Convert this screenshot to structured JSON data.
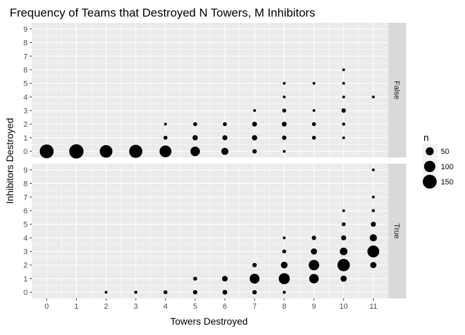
{
  "chart_data": {
    "type": "scatter",
    "title": "Frequency of Teams that Destroyed N Towers, M Inhibitors",
    "xlabel": "Towers Destroyed",
    "ylabel": "Inhibitors Destroyed",
    "x_ticks": [
      0,
      1,
      2,
      3,
      4,
      5,
      6,
      7,
      8,
      9,
      10,
      11
    ],
    "y_ticks": [
      0,
      1,
      2,
      3,
      4,
      5,
      6,
      7,
      8,
      9
    ],
    "xlim": [
      -0.5,
      11.5
    ],
    "ylim": [
      -0.45,
      9.45
    ],
    "grid": true,
    "legend": {
      "title": "n",
      "placement": "right",
      "entries": [
        50,
        100,
        150
      ]
    },
    "facets": [
      {
        "strip_label": "False",
        "points": [
          {
            "x": 0,
            "y": 0,
            "n": 150
          },
          {
            "x": 1,
            "y": 0,
            "n": 160
          },
          {
            "x": 2,
            "y": 0,
            "n": 125
          },
          {
            "x": 3,
            "y": 0,
            "n": 135
          },
          {
            "x": 4,
            "y": 0,
            "n": 110
          },
          {
            "x": 5,
            "y": 0,
            "n": 70
          },
          {
            "x": 6,
            "y": 0,
            "n": 40
          },
          {
            "x": 7,
            "y": 0,
            "n": 15
          },
          {
            "x": 8,
            "y": 0,
            "n": 4
          },
          {
            "x": 4,
            "y": 1,
            "n": 12
          },
          {
            "x": 5,
            "y": 1,
            "n": 22
          },
          {
            "x": 6,
            "y": 1,
            "n": 20
          },
          {
            "x": 7,
            "y": 1,
            "n": 22
          },
          {
            "x": 8,
            "y": 1,
            "n": 15
          },
          {
            "x": 9,
            "y": 1,
            "n": 12
          },
          {
            "x": 10,
            "y": 1,
            "n": 4
          },
          {
            "x": 4,
            "y": 2,
            "n": 6
          },
          {
            "x": 5,
            "y": 2,
            "n": 12
          },
          {
            "x": 6,
            "y": 2,
            "n": 12
          },
          {
            "x": 7,
            "y": 2,
            "n": 18
          },
          {
            "x": 8,
            "y": 2,
            "n": 18
          },
          {
            "x": 9,
            "y": 2,
            "n": 12
          },
          {
            "x": 10,
            "y": 2,
            "n": 8
          },
          {
            "x": 7,
            "y": 3,
            "n": 5
          },
          {
            "x": 8,
            "y": 3,
            "n": 12
          },
          {
            "x": 9,
            "y": 3,
            "n": 5
          },
          {
            "x": 10,
            "y": 3,
            "n": 15
          },
          {
            "x": 8,
            "y": 4,
            "n": 5
          },
          {
            "x": 10,
            "y": 4,
            "n": 5
          },
          {
            "x": 11,
            "y": 4,
            "n": 5
          },
          {
            "x": 8,
            "y": 5,
            "n": 4
          },
          {
            "x": 9,
            "y": 5,
            "n": 4
          },
          {
            "x": 10,
            "y": 5,
            "n": 5
          },
          {
            "x": 10,
            "y": 6,
            "n": 4
          }
        ]
      },
      {
        "strip_label": "True",
        "points": [
          {
            "x": 2,
            "y": 0,
            "n": 5
          },
          {
            "x": 3,
            "y": 0,
            "n": 8
          },
          {
            "x": 4,
            "y": 0,
            "n": 12
          },
          {
            "x": 5,
            "y": 0,
            "n": 15
          },
          {
            "x": 6,
            "y": 0,
            "n": 18
          },
          {
            "x": 7,
            "y": 0,
            "n": 15
          },
          {
            "x": 8,
            "y": 0,
            "n": 8
          },
          {
            "x": 5,
            "y": 1,
            "n": 12
          },
          {
            "x": 6,
            "y": 1,
            "n": 25
          },
          {
            "x": 7,
            "y": 1,
            "n": 75
          },
          {
            "x": 8,
            "y": 1,
            "n": 95
          },
          {
            "x": 9,
            "y": 1,
            "n": 70
          },
          {
            "x": 10,
            "y": 1,
            "n": 30
          },
          {
            "x": 7,
            "y": 2,
            "n": 15
          },
          {
            "x": 8,
            "y": 2,
            "n": 35
          },
          {
            "x": 9,
            "y": 2,
            "n": 85
          },
          {
            "x": 10,
            "y": 2,
            "n": 120
          },
          {
            "x": 11,
            "y": 2,
            "n": 30
          },
          {
            "x": 8,
            "y": 3,
            "n": 12
          },
          {
            "x": 9,
            "y": 3,
            "n": 30
          },
          {
            "x": 10,
            "y": 3,
            "n": 45
          },
          {
            "x": 11,
            "y": 3,
            "n": 110
          },
          {
            "x": 8,
            "y": 4,
            "n": 5
          },
          {
            "x": 9,
            "y": 4,
            "n": 15
          },
          {
            "x": 10,
            "y": 4,
            "n": 20
          },
          {
            "x": 11,
            "y": 4,
            "n": 40
          },
          {
            "x": 10,
            "y": 5,
            "n": 12
          },
          {
            "x": 11,
            "y": 5,
            "n": 20
          },
          {
            "x": 10,
            "y": 6,
            "n": 6
          },
          {
            "x": 11,
            "y": 6,
            "n": 8
          },
          {
            "x": 11,
            "y": 7,
            "n": 5
          },
          {
            "x": 11,
            "y": 9,
            "n": 4
          }
        ]
      }
    ]
  }
}
